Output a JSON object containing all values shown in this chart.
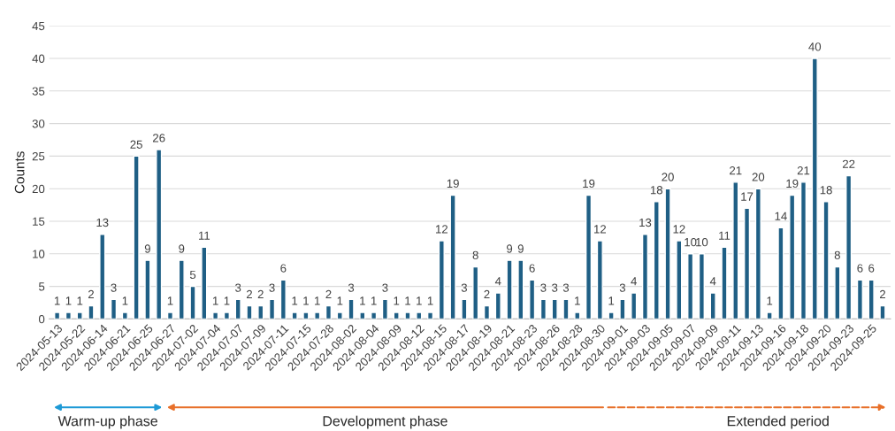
{
  "chart_data": {
    "type": "bar",
    "ylabel": "Counts",
    "categories": [
      "2024-05-13",
      null,
      "2024-05-22",
      null,
      "2024-06-14",
      null,
      "2024-06-21",
      null,
      "2024-06-25",
      null,
      "2024-06-27",
      null,
      "2024-07-02",
      null,
      "2024-07-04",
      null,
      "2024-07-07",
      null,
      "2024-07-09",
      null,
      "2024-07-11",
      null,
      "2024-07-15",
      null,
      "2024-07-28",
      null,
      "2024-08-02",
      null,
      "2024-08-04",
      null,
      "2024-08-09",
      null,
      "2024-08-12",
      null,
      "2024-08-15",
      null,
      "2024-08-17",
      null,
      "2024-08-19",
      null,
      "2024-08-21",
      null,
      "2024-08-23",
      null,
      "2024-08-26",
      null,
      "2024-08-28",
      null,
      "2024-08-30",
      null,
      "2024-09-01",
      null,
      "2024-09-03",
      null,
      "2024-09-05",
      null,
      "2024-09-07",
      null,
      "2024-09-09",
      null,
      "2024-09-11",
      null,
      "2024-09-13",
      null,
      "2024-09-16",
      null,
      "2024-09-18",
      null,
      "2024-09-20",
      null,
      "2024-09-23",
      null,
      "2024-09-25",
      null
    ],
    "values": [
      1,
      1,
      1,
      2,
      13,
      3,
      1,
      25,
      9,
      26,
      1,
      9,
      5,
      11,
      1,
      1,
      3,
      2,
      2,
      3,
      6,
      1,
      1,
      1,
      2,
      1,
      3,
      1,
      1,
      3,
      1,
      1,
      1,
      1,
      12,
      19,
      3,
      8,
      2,
      4,
      9,
      9,
      6,
      3,
      3,
      3,
      1,
      19,
      12,
      1,
      3,
      4,
      13,
      18,
      20,
      12,
      10,
      10,
      4,
      11,
      21,
      17,
      20,
      1,
      14,
      19,
      21,
      40,
      18,
      8,
      22,
      6,
      6,
      2
    ],
    "color": "#1f5f85",
    "ylim": [
      0,
      45
    ],
    "yticks": [
      0,
      5,
      10,
      15,
      20,
      25,
      30,
      35,
      40,
      45
    ],
    "grid": "y",
    "data_labels": true,
    "annotations": [
      "Warm-up phase",
      "Development phase",
      "Extended period"
    ]
  }
}
